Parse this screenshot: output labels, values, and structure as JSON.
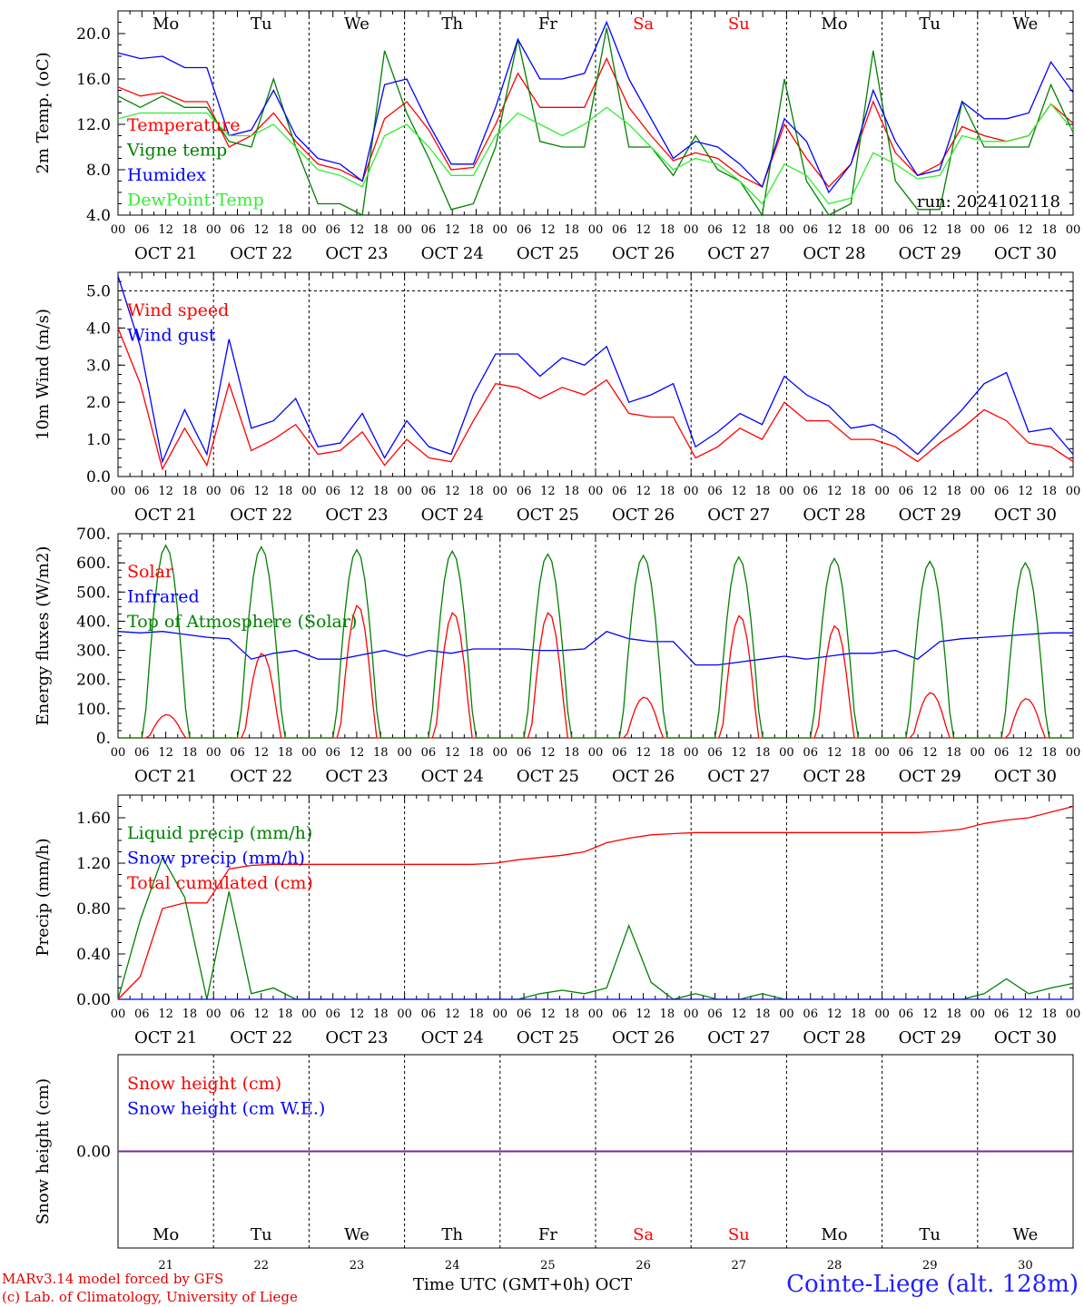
{
  "run_label": "run: 2024102118",
  "footer": {
    "credit_line1": "MARv3.14 model forced by GFS",
    "credit_line2": "(c) Lab. of Climatology, University of Liege",
    "x_caption": "Time UTC (GMT+0h) OCT",
    "station": "Cointe-Liege (alt. 128m)"
  },
  "time_axis": {
    "hour_ticks": [
      "00",
      "06",
      "12",
      "18"
    ],
    "final_tick": "00",
    "dates": [
      "OCT 21",
      "OCT 22",
      "OCT 23",
      "OCT 24",
      "OCT 25",
      "OCT 26",
      "OCT 27",
      "OCT 28",
      "OCT 29",
      "OCT 30"
    ],
    "day_numbers": [
      "21",
      "22",
      "23",
      "24",
      "25",
      "26",
      "27",
      "28",
      "29",
      "30"
    ],
    "weekdays": [
      "Mo",
      "Tu",
      "We",
      "Th",
      "Fr",
      "Sa",
      "Su",
      "Mo",
      "Tu",
      "We"
    ],
    "weekend_days": [
      "Sa",
      "Su"
    ]
  },
  "colors": {
    "red": "#ff0000",
    "green": "#008000",
    "blue": "#0000ff",
    "lightgreen": "#33ee33",
    "purple": "#7a2a99",
    "weekend": "#ff0000"
  },
  "chart_data": [
    {
      "type": "line",
      "ylabel": "2m Temp. (oC)",
      "ylim": [
        4,
        22
      ],
      "yticks": [
        "4.0",
        "8.0",
        "12.0",
        "16.0",
        "20.0"
      ],
      "series": [
        {
          "name": "Temperature",
          "color": "#ff0000",
          "values": [
            15.3,
            14.5,
            14.8,
            14.0,
            14.0,
            10.0,
            11.0,
            13.0,
            10.5,
            8.5,
            8.0,
            7.0,
            12.5,
            14.0,
            11.5,
            8.0,
            8.2,
            12.0,
            16.5,
            13.5,
            13.5,
            13.5,
            17.8,
            13.5,
            11.0,
            8.8,
            9.5,
            9.0,
            7.5,
            6.5,
            12.0,
            9.0,
            6.5,
            8.5,
            14.0,
            9.5,
            7.5,
            8.5,
            11.8,
            11.0,
            10.5,
            11.0,
            13.8,
            12.1
          ]
        },
        {
          "name": "Vigne temp",
          "color": "#008000",
          "values": [
            14.5,
            13.5,
            14.5,
            13.5,
            13.5,
            10.5,
            10.0,
            16.0,
            10.0,
            5.0,
            5.0,
            4.0,
            18.5,
            13.0,
            9.0,
            4.5,
            5.0,
            10.0,
            19.5,
            10.5,
            10.0,
            10.0,
            20.5,
            10.0,
            10.0,
            7.5,
            11.0,
            8.0,
            7.0,
            4.0,
            16.0,
            7.0,
            4.0,
            5.0,
            18.5,
            7.0,
            4.5,
            4.5,
            14.0,
            10.0,
            10.0,
            10.0,
            15.5,
            11.3
          ]
        },
        {
          "name": "Humidex",
          "color": "#0000ff",
          "values": [
            18.3,
            17.8,
            18.0,
            17.0,
            17.0,
            11.0,
            11.5,
            15.0,
            11.0,
            9.0,
            8.5,
            7.0,
            15.5,
            16.0,
            12.0,
            8.5,
            8.5,
            13.5,
            19.5,
            16.0,
            16.0,
            16.5,
            21.0,
            16.0,
            12.5,
            9.0,
            10.5,
            10.0,
            8.5,
            6.5,
            12.5,
            10.5,
            6.0,
            8.5,
            15.0,
            10.5,
            7.5,
            8.0,
            14.0,
            12.5,
            12.5,
            13.0,
            17.5,
            14.8
          ]
        },
        {
          "name": "DewPoint Temp",
          "color": "#33ee33",
          "values": [
            12.5,
            13.0,
            13.0,
            13.0,
            13.0,
            11.0,
            11.0,
            12.0,
            10.0,
            8.0,
            7.5,
            6.5,
            11.0,
            12.0,
            10.0,
            7.5,
            7.5,
            11.0,
            13.0,
            12.0,
            11.0,
            12.0,
            13.5,
            12.0,
            10.0,
            8.0,
            9.0,
            8.5,
            7.0,
            5.0,
            8.5,
            7.5,
            5.0,
            5.5,
            9.5,
            8.5,
            7.2,
            7.5,
            11.0,
            10.5,
            10.5,
            11.0,
            13.8,
            11.5
          ]
        }
      ]
    },
    {
      "type": "line",
      "ylabel": "10m Wind (m/s)",
      "ylim": [
        0,
        5.5
      ],
      "yticks": [
        "0.0",
        "1.0",
        "2.0",
        "3.0",
        "4.0",
        "5.0"
      ],
      "series": [
        {
          "name": "Wind speed",
          "color": "#ff0000",
          "values": [
            4.0,
            2.5,
            0.2,
            1.3,
            0.3,
            2.5,
            0.7,
            1.0,
            1.4,
            0.6,
            0.7,
            1.2,
            0.3,
            1.0,
            0.5,
            0.4,
            1.5,
            2.5,
            2.4,
            2.1,
            2.4,
            2.2,
            2.6,
            1.7,
            1.6,
            1.6,
            0.5,
            0.8,
            1.3,
            1.0,
            2.0,
            1.5,
            1.5,
            1.0,
            1.0,
            0.8,
            0.4,
            0.9,
            1.3,
            1.8,
            1.5,
            0.9,
            0.8,
            0.4
          ]
        },
        {
          "name": "Wind gust",
          "color": "#0000ff",
          "values": [
            5.4,
            3.5,
            0.4,
            1.8,
            0.6,
            3.7,
            1.3,
            1.5,
            2.1,
            0.8,
            0.9,
            1.7,
            0.5,
            1.5,
            0.8,
            0.6,
            2.2,
            3.3,
            3.3,
            2.7,
            3.2,
            3.0,
            3.5,
            2.0,
            2.2,
            2.5,
            0.8,
            1.2,
            1.7,
            1.4,
            2.7,
            2.2,
            1.9,
            1.3,
            1.4,
            1.1,
            0.6,
            1.2,
            1.8,
            2.5,
            2.8,
            1.2,
            1.3,
            0.6
          ]
        }
      ]
    },
    {
      "type": "line",
      "ylabel": "Energy fluxes (W/m2)",
      "ylim": [
        0,
        700
      ],
      "yticks": [
        "0.",
        "100.",
        "200.",
        "300.",
        "400.",
        "500.",
        "600.",
        "700."
      ],
      "series": [
        {
          "name": "Solar",
          "color": "#ff0000",
          "peaks": [
            80,
            290,
            455,
            430,
            430,
            140,
            420,
            385,
            155,
            135
          ]
        },
        {
          "name": "Infrared",
          "color": "#0000ff",
          "values": [
            365,
            360,
            365,
            355,
            345,
            340,
            270,
            290,
            300,
            270,
            270,
            285,
            300,
            280,
            300,
            290,
            305,
            305,
            305,
            300,
            300,
            305,
            365,
            340,
            330,
            330,
            250,
            250,
            260,
            270,
            280,
            270,
            280,
            290,
            290,
            300,
            270,
            330,
            340,
            345,
            350,
            355,
            360,
            360
          ]
        },
        {
          "name": "Top of Atmosphere (Solar)",
          "color": "#008000",
          "peaks": [
            660,
            655,
            645,
            640,
            630,
            625,
            620,
            615,
            605,
            600
          ]
        }
      ]
    },
    {
      "type": "line",
      "ylabel": "Precip (mm/h)",
      "ylim": [
        0,
        1.8
      ],
      "yticks": [
        "0.00",
        "0.40",
        "0.80",
        "1.20",
        "1.60"
      ],
      "series": [
        {
          "name": "Liquid precip (mm/h)",
          "color": "#008000",
          "values": [
            0.0,
            0.7,
            1.25,
            0.9,
            0.0,
            0.95,
            0.05,
            0.1,
            0,
            0,
            0,
            0,
            0,
            0,
            0,
            0,
            0,
            0,
            0,
            0.05,
            0.08,
            0.05,
            0.1,
            0.65,
            0.15,
            0,
            0.05,
            0,
            0,
            0.05,
            0,
            0,
            0,
            0,
            0,
            0,
            0,
            0,
            0,
            0.05,
            0.18,
            0.05,
            0.1,
            0.14
          ]
        },
        {
          "name": "Snow precip (mm/h)",
          "color": "#0000ff",
          "values": [
            0,
            0,
            0,
            0,
            0,
            0,
            0,
            0,
            0,
            0,
            0,
            0,
            0,
            0,
            0,
            0,
            0,
            0,
            0,
            0,
            0,
            0,
            0,
            0,
            0,
            0,
            0,
            0,
            0,
            0,
            0,
            0,
            0,
            0,
            0,
            0,
            0,
            0,
            0,
            0,
            0,
            0,
            0,
            0
          ]
        },
        {
          "name": "Total cumulated (cm)",
          "color": "#ff0000",
          "values": [
            0.0,
            0.2,
            0.8,
            0.85,
            0.85,
            1.15,
            1.18,
            1.19,
            1.19,
            1.19,
            1.19,
            1.19,
            1.19,
            1.19,
            1.19,
            1.19,
            1.19,
            1.2,
            1.23,
            1.25,
            1.27,
            1.3,
            1.38,
            1.42,
            1.45,
            1.46,
            1.47,
            1.47,
            1.47,
            1.47,
            1.47,
            1.47,
            1.47,
            1.47,
            1.47,
            1.47,
            1.47,
            1.48,
            1.5,
            1.55,
            1.58,
            1.6,
            1.65,
            1.7
          ]
        }
      ]
    },
    {
      "type": "line",
      "ylabel": "Snow height (cm)",
      "yticks": [
        "0.00"
      ],
      "series": [
        {
          "name": "Snow height (cm)",
          "color": "#ff0000",
          "values": [
            0,
            0
          ]
        },
        {
          "name": "Snow height (cm W.E.)",
          "color": "#0000ff",
          "values": [
            0,
            0
          ]
        }
      ]
    }
  ]
}
